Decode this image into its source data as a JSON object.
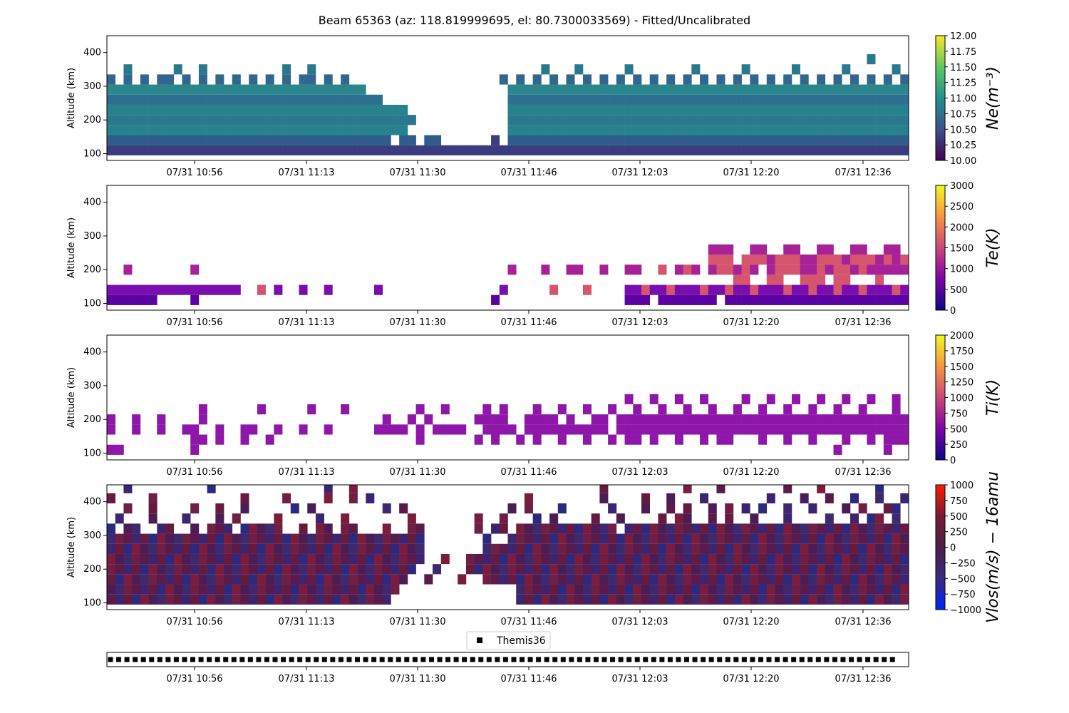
{
  "chart_data": {
    "type": "heatmap",
    "title": "Beam 65363 (az: 118.819999695, el: 80.7300033569) - Fitted/Uncalibrated",
    "x_range": [
      "07/31 10:44",
      "07/31 12:43"
    ],
    "x_ticks": [
      "07/31 10:56",
      "07/31 11:13",
      "07/31 11:30",
      "07/31 11:46",
      "07/31 12:03",
      "07/31 12:20",
      "07/31 12:36"
    ],
    "altitude_bins_km": [
      110,
      140,
      170,
      200,
      230,
      260,
      290,
      320,
      350,
      380,
      410,
      440
    ],
    "panels": [
      {
        "id": "ne",
        "ylabel": "Altitude (km)",
        "ylim": [
          80,
          450
        ],
        "yticks": [
          "100",
          "200",
          "300",
          "400"
        ],
        "colorbar_label": "Ne(m⁻³)",
        "colormap": "viridis",
        "clim": [
          10.0,
          12.0
        ],
        "colorbar_ticks": [
          "10.00",
          "10.25",
          "10.50",
          "10.75",
          "11.00",
          "11.25",
          "11.50",
          "11.75",
          "12.00"
        ],
        "rows": [
          "AAAAAAAAAAAAAAAAAAAAAAAAAAAAAAAAAAAAAAAAAAAAAAAAAAAAAAAAAAAAAAAAAAAAAAAAAAAAAAAAAAAAAAAAAAAAAAAAAA",
          "BBBBBBBBBBBBBBBBBBBBBBBBBBBBBBBBBB.BB.BB......A.BBBBBBBBBBBBBBBBBBBBBBBBBBBBBBBBBBBBBBBBBBBBBBBBBB",
          "CCCCCCCCCCCCCCCCCCCCCCCCCCCCCCCCCCCC............CCCCCCCCCCCCCCCCCCCCCCCCCCCCCCCCCCCCCCCCCCCCCCCCCC",
          "DDDDDDDDDDDDDDDDDDDDDDDDDDDDDDDDDDDDD...........DDDDDDDDDDDDDDDDDDDDDDDDDDDDDDDDDDDDDDDDDDDDDDDDDD",
          "EEEEEEEEEEEEEEEEEEEEEEEEEEEEEEEEEEEE............EEEEEEEEEEEEEEEEEEEEEEEEEEEEEEEEEEEEEEEEEEEEEEEEEE",
          "FFFFFFFFFFFFFFFFFFFFFFFFFFFFFFFFF...............FFFFFFFFFFFFFFFFFFFFFFFFFFFFFFFFFFFFFFFFFFFFFFFFFF",
          "GGGGGGGGGGGGGGGGGGGGGGGGGGGGGGG.................GGGGGGGGGGGGGGGGGGGGGGGGGGGGGGGGGGGGGGGGGGGGGGGGGG",
          "H.H.H.HH.H.H.H.H.H.H.H.HH.H.H..................H.H.H.H.H.H.H.H.H.H.H.H.H.H.H.H.H.H.H.H.H.H.H.H.H.",
          "..I.....I..I.........I..I...........................I...I.....I.......I.....I.....I.....I.....I.I",
          "...........................................................................................I....",
          "..................................................................................................",
          ".................................................................................................."
        ]
      },
      {
        "id": "te",
        "ylabel": "Altitude (km)",
        "ylim": [
          80,
          450
        ],
        "yticks": [
          "100",
          "200",
          "300",
          "400"
        ],
        "colorbar_label": "Te(K)",
        "colormap": "plasma",
        "clim": [
          0,
          3000
        ],
        "colorbar_ticks": [
          "0",
          "500",
          "1000",
          "1500",
          "2000",
          "2500",
          "3000"
        ],
        "rows": [
          "aaaaaa....a...................................a...............aaa.aaaaaaa.aaaaaaaaaaaaaaaaaaaaaaa",
          "bbbbbbbbbbbbbbbb..c.b..b..b.....b..............b.....c...c....bbcbbcbbbcbbcbbcbbbcbbcbbcbbcbbbcbb",
          "...........................................................................cc..cc..ccc.cc...c...",
          "..d.......d.....................................d...d..dd..d..dd..c.dcd.dccdcd.dcccddcdccdcdddddc",
          "........................................................................ccc.cccdcccddcccdcccdcdcc",
          "........................................................................ddd..dd..dd..dd..dd..dd..",
          "...............................................................................................",
          "..............................................................................................."
        ]
      },
      {
        "id": "ti",
        "ylabel": "Altitude (km)",
        "ylim": [
          80,
          450
        ],
        "yticks": [
          "100",
          "200",
          "300",
          "400"
        ],
        "colorbar_label": "Ti(K)",
        "colormap": "plasma",
        "clim": [
          0,
          2000
        ],
        "colorbar_ticks": [
          "0",
          "250",
          "500",
          "750",
          "1000",
          "1250",
          "1500",
          "1750",
          "2000"
        ],
        "rows": [
          "pp........p............................................................................p.....p..",
          "..........pp.p..p..p.................p......p.p..p.p..p..p..p.pp.p..p..p.pp...p..p..p...p..p.ppp.",
          "p..p..p..pp..p..pp..p..p..p.....pppp.p.pppp..pppp.pppppppppp.ppppppppppppppppppppppppppppppppppp",
          "p..p..p....p.....................p..p.p.....pppp..pppp.p..pp.pppppppppppppppppppppppppppppppppppp",
          "...........p......p.....p...p........p..p....p.p...p..p..p..p..p..p..p..p..p..p..p..p..p..p...p.",
          "..............................................................p..p..p..p....p..p..p..p..p..p..p.",
          "................................................................................................",
          "................................................................................................"
        ]
      },
      {
        "id": "vlos",
        "ylabel": "Altitude (km)",
        "ylim": [
          80,
          450
        ],
        "yticks": [
          "100",
          "200",
          "300",
          "400"
        ],
        "colorbar_label": "Vlos(m/s) − 16amu",
        "colormap": "bwr-dark",
        "clim": [
          -1000,
          1000
        ],
        "colorbar_ticks": [
          "−1000",
          "−750",
          "−500",
          "−250",
          "0",
          "250",
          "500",
          "750",
          "1000"
        ],
        "rows": [
          "vvvvvvvvvvvvvvvvvvvvvvvvvvvvvvvvvv...............vvvvvvvvvvvvvvvvvvvvvvvvvvvvvvvvvvvvvvvvvvvvvvvvv",
          "vvvvvvvvvvvvvvvvvvvvvvvvvvvvvvvvvvv..............vvvvvvvvvvvvvvvvvvvvvvvvvvvvvvvvvvvvvvvvvvvvvvvvv",
          "vvvvvvvvvvvvvvvvvvvvvvvvvvvvvvvvvvvv..v...v..vvvvvvvvvvvvvvvvvvvvvvvvvvvvvvvvvvvvvvvvvvvvvvvvvvvv",
          "vvvvvvvvvvvvvvvvvvvvvvvvvvvvvvvvvvvvv..v...vvvvvvvvvvvvvvvvvvvvvvvvvvvvvvvvvvvvvvvvvvvvvvvvvvvvvv",
          "vvvvvvvvvvvvvvvvvvvvvvvvvvvvvvvvvvvvvv..v..vvvvvvvvvvvvvvvvvvvvvvvvvvvvvvvvvvvvvvvvvvvvvvvvvvvvvv",
          "vvvvvvvvvvvvvvvvvvvvvvvvvvvvvvvvvvvvvv.......vvvvvvvvvvvvvvvvvvvvvvvvvvvvvvvvvvvvvvvvvvvvvvvvvvvv",
          "vvvvvvvvvvvvvvvvvvvvvvvvvvvvvvvvvvvvvv.......v..vvvvvvvvvvvvvvvvvvvvvvvvvvvvvvvvvvvvvvvvvvvvvvvvv",
          "v.vv..vv..v.vvv.vvvvv..v.vv.vv...v..vv......v.vv.vvvvvvvvvvvv.vvvvvvvvvvvvvvvvvvvvvvvvvvvvvvvvvvv",
          ".v...v...v...v.v....v....v..v.......v.......v..v...v.v....v..v....v.vv..v.v..v...v....v..v.vv.v",
          "..v..v....v..v..v.....v.v........v.v............v.v...v.....v...v..v.v..v.v.v.v..v..v...v.v..vv.",
          "v....v..........v....v....v..v.v..................v........v....v..v...v.......v...v..v..v..v..v",
          "..v.........v.............v..v.............................v.........v...v.......v...v......v..."
        ]
      }
    ],
    "legend": {
      "entries": [
        "Themis36"
      ],
      "placement": "top-center",
      "marker": "square",
      "color": "#000000"
    },
    "marker_count": 96
  }
}
